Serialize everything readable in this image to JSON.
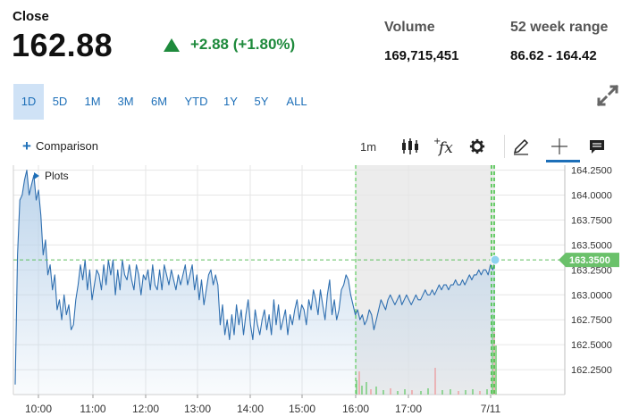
{
  "quote": {
    "label": "Close",
    "price": "162.88",
    "change": "+2.88 (+1.80%)",
    "change_color": "#1e8a3c"
  },
  "stats": {
    "volume_label": "Volume",
    "volume_value": "169,715,451",
    "range_label": "52 week range",
    "range_value": "86.62 - 164.42"
  },
  "range_tabs": [
    {
      "label": "1D",
      "active": true
    },
    {
      "label": "5D",
      "active": false
    },
    {
      "label": "1M",
      "active": false
    },
    {
      "label": "3M",
      "active": false
    },
    {
      "label": "6M",
      "active": false
    },
    {
      "label": "YTD",
      "active": false
    },
    {
      "label": "1Y",
      "active": false
    },
    {
      "label": "5Y",
      "active": false
    },
    {
      "label": "ALL",
      "active": false
    }
  ],
  "toolbar": {
    "comparison_label": "Comparison",
    "interval_label": "1m",
    "icons": [
      "candlestick-icon",
      "function-icon",
      "gear-icon",
      "pencil-icon",
      "crosshair-icon",
      "comment-icon"
    ]
  },
  "plots_label": "Plots",
  "colors": {
    "line": "#2f6fb0",
    "area_top": "#b9d2ea",
    "accent": "#1d6fb8",
    "price_tag": "#6ac16a",
    "after_hours_bg": "#ececec",
    "volume_up": "#7fd07f",
    "volume_down": "#f2a6a6"
  },
  "chart_data": {
    "type": "line",
    "x_ticks": [
      "10:00",
      "11:00",
      "12:00",
      "13:00",
      "14:00",
      "15:00",
      "16:00",
      "17:00",
      "7/11"
    ],
    "y_ticks": [
      "164.2500",
      "164.0000",
      "163.7500",
      "163.5000",
      "163.2500",
      "163.0000",
      "162.7500",
      "162.5000",
      "162.2500"
    ],
    "ylim": [
      162.0,
      164.3
    ],
    "current_value_label": "163.3500",
    "current_value": 163.35,
    "series": [
      {
        "values": [
          162.1,
          163.4,
          163.95,
          164.0,
          164.15,
          164.25,
          164.0,
          164.1,
          164.2,
          163.95,
          164.05,
          163.8,
          163.4,
          163.55,
          163.2,
          163.3,
          163.05,
          163.2,
          162.85,
          162.95,
          162.75,
          163.0,
          162.8,
          162.9,
          162.65,
          162.7,
          162.95,
          163.1,
          163.3,
          163.15,
          163.35,
          163.05,
          163.25,
          162.95,
          163.1,
          163.25,
          163.2,
          163.05,
          163.3,
          163.1,
          163.35,
          163.2,
          163.35,
          163.0,
          163.25,
          163.05,
          163.35,
          163.2,
          163.15,
          163.3,
          163.15,
          163.05,
          163.3,
          163.2,
          163.0,
          163.2,
          163.15,
          163.25,
          163.05,
          163.3,
          163.1,
          163.05,
          163.25,
          163.05,
          163.3,
          163.2,
          163.1,
          163.25,
          163.15,
          163.05,
          163.2,
          163.1,
          163.2,
          163.3,
          163.1,
          163.2,
          163.3,
          163.05,
          163.2,
          162.95,
          163.15,
          162.9,
          163.05,
          163.2,
          163.25,
          163.1,
          163.2,
          163.1,
          162.7,
          162.9,
          162.6,
          162.75,
          162.55,
          162.8,
          162.6,
          162.9,
          162.7,
          162.85,
          162.6,
          162.8,
          162.95,
          162.7,
          162.55,
          162.85,
          162.7,
          162.6,
          162.75,
          162.85,
          162.65,
          162.8,
          162.6,
          162.95,
          162.7,
          162.9,
          162.65,
          162.75,
          162.85,
          162.6,
          162.8,
          162.7,
          162.85,
          162.95,
          162.75,
          162.9,
          162.85,
          162.7,
          162.95,
          162.85,
          163.05,
          162.95,
          162.8,
          163.05,
          162.9,
          162.75,
          163.0,
          163.15,
          162.8,
          162.95,
          162.75,
          162.85,
          163.05,
          163.1,
          163.2,
          163.15,
          163.0,
          162.9,
          162.8,
          162.85,
          162.75,
          162.8,
          162.7,
          162.75,
          162.85,
          162.8,
          162.65,
          162.75,
          162.85,
          162.95,
          162.9,
          162.85,
          162.95,
          163.0,
          162.95,
          162.9,
          162.95,
          163.0,
          162.9,
          162.95,
          163.0,
          162.95,
          162.9,
          162.95,
          163.0,
          162.95,
          162.95,
          163.0,
          163.05,
          163.0,
          163.0,
          163.05,
          163.0,
          163.05,
          163.1,
          163.05,
          163.1,
          163.1,
          163.05,
          163.1,
          163.1,
          163.15,
          163.1,
          163.1,
          163.15,
          163.1,
          163.15,
          163.2,
          163.15,
          163.2,
          163.2,
          163.25,
          163.2,
          163.25,
          163.25,
          163.2,
          163.3,
          163.25,
          163.35
        ]
      }
    ],
    "regular_session_end": "16:00",
    "grid": true,
    "y_axis_position": "right"
  }
}
